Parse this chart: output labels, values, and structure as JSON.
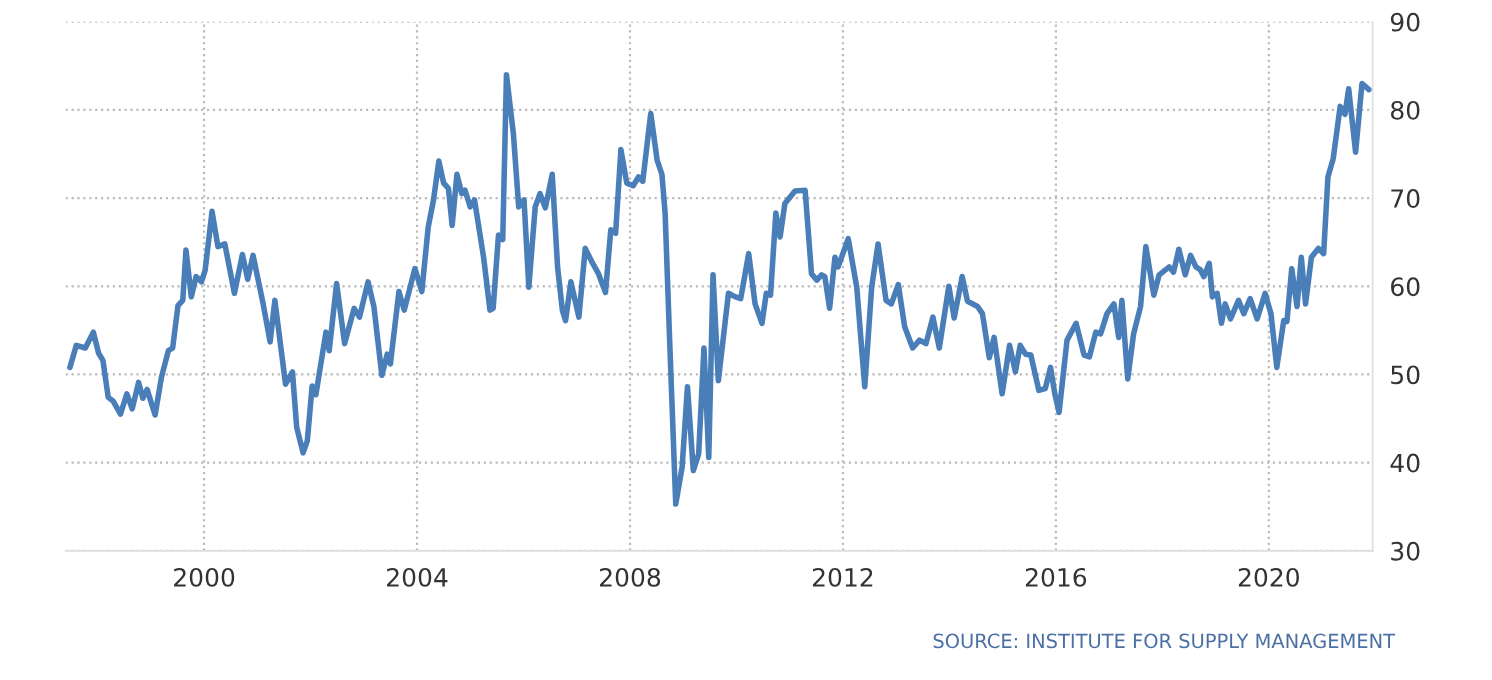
{
  "chart_data": {
    "type": "line",
    "x": [
      1997.48,
      1997.6,
      1997.77,
      1997.92,
      1998.02,
      1998.1,
      1998.2,
      1998.29,
      1998.43,
      1998.55,
      1998.65,
      1998.77,
      1998.85,
      1998.93,
      1999.08,
      1999.2,
      1999.33,
      1999.41,
      1999.51,
      1999.6,
      1999.66,
      1999.76,
      1999.85,
      1999.95,
      2000.02,
      2000.15,
      2000.26,
      2000.39,
      2000.57,
      2000.72,
      2000.82,
      2000.92,
      2001.11,
      2001.24,
      2001.33,
      2001.53,
      2001.66,
      2001.74,
      2001.86,
      2001.94,
      2002.03,
      2002.1,
      2002.29,
      2002.35,
      2002.49,
      2002.64,
      2002.82,
      2002.92,
      2003.08,
      2003.19,
      2003.34,
      2003.44,
      2003.5,
      2003.66,
      2003.76,
      2003.96,
      2004.09,
      2004.21,
      2004.31,
      2004.41,
      2004.5,
      2004.59,
      2004.66,
      2004.75,
      2004.84,
      2004.9,
      2005.0,
      2005.08,
      2005.25,
      2005.37,
      2005.43,
      2005.53,
      2005.61,
      2005.68,
      2005.81,
      2005.91,
      2006.01,
      2006.1,
      2006.22,
      2006.31,
      2006.41,
      2006.54,
      2006.64,
      2006.73,
      2006.79,
      2006.89,
      2007.04,
      2007.16,
      2007.29,
      2007.41,
      2007.54,
      2007.64,
      2007.73,
      2007.83,
      2007.94,
      2008.06,
      2008.16,
      2008.24,
      2008.39,
      2008.51,
      2008.6,
      2008.66,
      2008.75,
      2008.86,
      2008.98,
      2009.08,
      2009.19,
      2009.29,
      2009.39,
      2009.48,
      2009.56,
      2009.66,
      2009.85,
      2009.98,
      2010.08,
      2010.23,
      2010.35,
      2010.48,
      2010.56,
      2010.64,
      2010.74,
      2010.82,
      2010.91,
      2011.1,
      2011.29,
      2011.41,
      2011.51,
      2011.6,
      2011.66,
      2011.75,
      2011.85,
      2011.91,
      2012.1,
      2012.26,
      2012.41,
      2012.54,
      2012.66,
      2012.81,
      2012.91,
      2013.04,
      2013.16,
      2013.31,
      2013.44,
      2013.56,
      2013.69,
      2013.81,
      2013.99,
      2014.09,
      2014.24,
      2014.34,
      2014.53,
      2014.62,
      2014.75,
      2014.84,
      2014.99,
      2015.13,
      2015.24,
      2015.33,
      2015.43,
      2015.53,
      2015.68,
      2015.8,
      2015.9,
      2015.98,
      2016.06,
      2016.21,
      2016.38,
      2016.53,
      2016.63,
      2016.75,
      2016.84,
      2016.96,
      2017.09,
      2017.18,
      2017.24,
      2017.35,
      2017.46,
      2017.59,
      2017.69,
      2017.84,
      2017.94,
      2018.13,
      2018.21,
      2018.31,
      2018.43,
      2018.53,
      2018.63,
      2018.71,
      2018.78,
      2018.88,
      2018.94,
      2019.03,
      2019.11,
      2019.18,
      2019.28,
      2019.43,
      2019.53,
      2019.65,
      2019.78,
      2019.93,
      2020.04,
      2020.15,
      2020.28,
      2020.34,
      2020.43,
      2020.53,
      2020.61,
      2020.69,
      2020.8,
      2020.93,
      2021.03,
      2021.11,
      2021.21,
      2021.34,
      2021.43,
      2021.5,
      2021.63,
      2021.75,
      2021.88
    ],
    "series": [
      {
        "color": "#4a7eb8",
        "values": [
          50.8,
          53.3,
          53.0,
          54.8,
          52.4,
          51.6,
          47.4,
          47.0,
          45.5,
          47.8,
          46.1,
          49.1,
          47.3,
          48.3,
          45.4,
          49.7,
          52.7,
          53.0,
          57.8,
          58.4,
          64.1,
          58.8,
          61.1,
          60.5,
          61.8,
          68.5,
          64.5,
          64.8,
          59.2,
          63.6,
          60.8,
          63.5,
          58.0,
          53.7,
          58.4,
          48.9,
          50.3,
          44.0,
          41.1,
          42.5,
          48.7,
          47.7,
          54.8,
          52.7,
          60.3,
          53.5,
          57.5,
          56.5,
          60.5,
          57.7,
          49.9,
          52.3,
          51.2,
          59.4,
          57.3,
          62.0,
          59.4,
          66.7,
          69.8,
          74.2,
          71.7,
          71.1,
          66.9,
          72.7,
          70.5,
          70.9,
          69.0,
          69.8,
          63.3,
          57.3,
          57.5,
          65.8,
          65.3,
          84.0,
          77.3,
          69.0,
          69.8,
          59.9,
          69.0,
          70.5,
          68.9,
          72.7,
          62.2,
          57.3,
          56.1,
          60.5,
          56.5,
          64.3,
          62.7,
          61.4,
          59.3,
          66.4,
          66.0,
          75.5,
          71.7,
          71.4,
          72.4,
          71.9,
          79.6,
          74.3,
          72.7,
          68.3,
          53.1,
          35.3,
          39.5,
          48.6,
          39.1,
          41.0,
          53.0,
          40.6,
          61.3,
          49.3,
          59.2,
          58.8,
          58.6,
          63.7,
          58.0,
          55.8,
          59.2,
          59.0,
          68.3,
          65.6,
          69.4,
          70.8,
          70.9,
          61.4,
          60.7,
          61.3,
          61.1,
          57.5,
          63.3,
          62.2,
          65.4,
          59.9,
          48.6,
          59.9,
          64.8,
          58.4,
          58.0,
          60.2,
          55.4,
          53.0,
          53.9,
          53.5,
          56.5,
          53.0,
          60.0,
          56.4,
          61.1,
          58.3,
          57.7,
          56.9,
          51.9,
          54.2,
          47.8,
          53.3,
          50.3,
          53.3,
          52.3,
          52.2,
          48.2,
          48.4,
          50.8,
          47.8,
          45.7,
          53.9,
          55.8,
          52.2,
          52.0,
          54.8,
          54.6,
          56.9,
          58.0,
          54.2,
          58.4,
          49.5,
          54.6,
          57.7,
          64.5,
          59.0,
          61.3,
          62.2,
          61.6,
          64.2,
          61.3,
          63.5,
          62.2,
          61.9,
          61.1,
          62.6,
          58.8,
          59.2,
          55.8,
          58.0,
          56.3,
          58.4,
          56.9,
          58.6,
          56.3,
          59.2,
          56.9,
          50.8,
          56.1,
          56.0,
          62.0,
          57.7,
          63.3,
          58.0,
          63.3,
          64.3,
          63.7,
          72.4,
          74.5,
          80.4,
          79.5,
          82.4,
          75.2,
          83.0,
          82.3
        ]
      }
    ],
    "xlim": [
      1997.4,
      2021.95
    ],
    "xticks": [
      2000,
      2004,
      2008,
      2012,
      2016,
      2020
    ],
    "ylim": [
      30,
      90
    ],
    "yticks": [
      30,
      40,
      50,
      60,
      70,
      80,
      90
    ],
    "grid": true,
    "line_style": "solid",
    "annotations": [
      "SOURCE: INSTITUTE FOR SUPPLY MANAGEMENT"
    ]
  }
}
